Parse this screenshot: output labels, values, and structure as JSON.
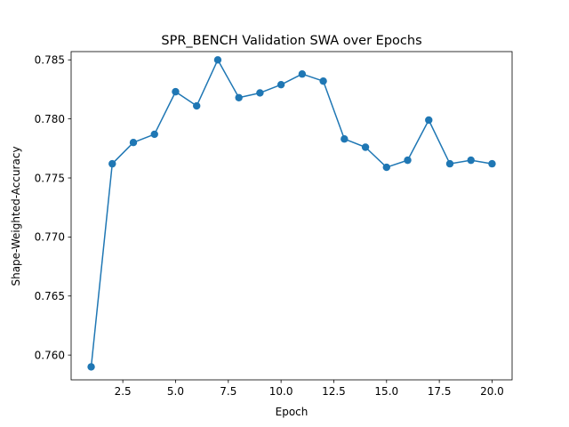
{
  "chart_data": {
    "type": "line",
    "title": "SPR_BENCH Validation SWA over Epochs",
    "xlabel": "Epoch",
    "ylabel": "Shape-Weighted-Accuracy",
    "xlim": [
      0.05,
      20.95
    ],
    "ylim": [
      0.7579,
      0.7857
    ],
    "xticks": [
      2.5,
      5.0,
      7.5,
      10.0,
      12.5,
      15.0,
      17.5,
      20.0
    ],
    "xtick_labels": [
      "2.5",
      "5.0",
      "7.5",
      "10.0",
      "12.5",
      "15.0",
      "17.5",
      "20.0"
    ],
    "yticks": [
      0.76,
      0.765,
      0.77,
      0.775,
      0.78,
      0.785
    ],
    "ytick_labels": [
      "0.760",
      "0.765",
      "0.770",
      "0.775",
      "0.780",
      "0.785"
    ],
    "grid": false,
    "series": [
      {
        "color": "#1f77b4",
        "marker": "circle",
        "x": [
          1,
          2,
          3,
          4,
          5,
          6,
          7,
          8,
          9,
          10,
          11,
          12,
          13,
          14,
          15,
          16,
          17,
          18,
          19,
          20
        ],
        "y": [
          0.759,
          0.7762,
          0.778,
          0.7787,
          0.7823,
          0.7811,
          0.785,
          0.7818,
          0.7822,
          0.7829,
          0.7838,
          0.7832,
          0.7783,
          0.7776,
          0.7759,
          0.7765,
          0.7799,
          0.7762,
          0.7765,
          0.7762
        ]
      }
    ]
  }
}
